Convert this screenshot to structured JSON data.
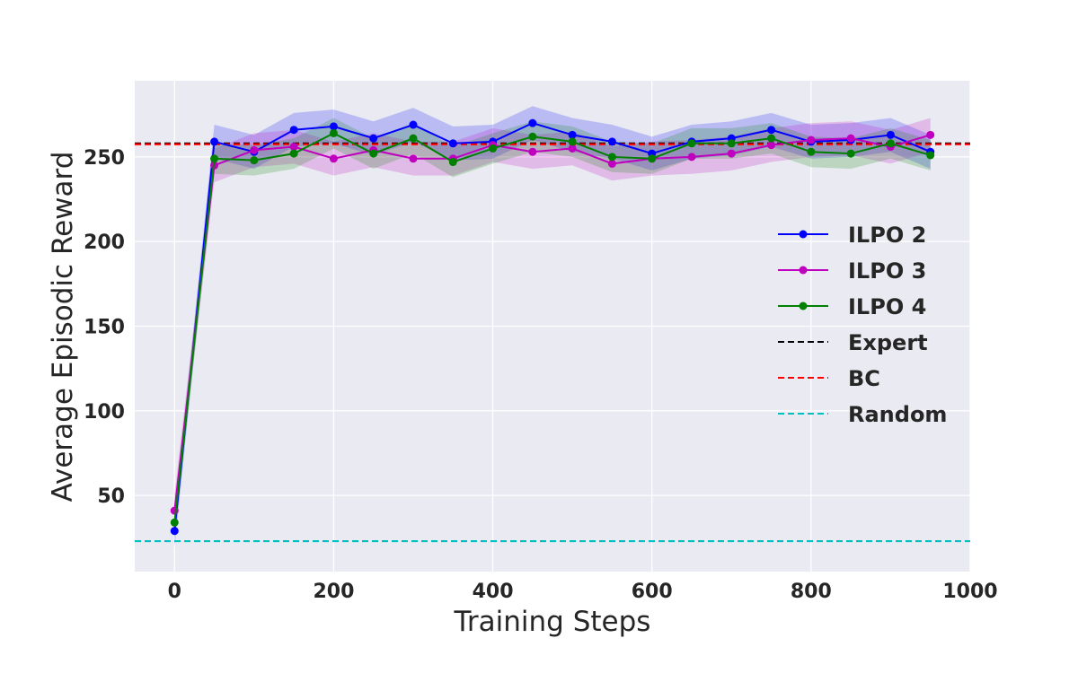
{
  "chart_data": {
    "type": "line",
    "title": "",
    "xlabel": "Training Steps",
    "ylabel": "Average Episodic Reward",
    "xlim": [
      -50,
      1000
    ],
    "ylim": [
      5,
      295
    ],
    "xticks": [
      0,
      200,
      400,
      600,
      800,
      1000
    ],
    "yticks": [
      50,
      100,
      150,
      200,
      250
    ],
    "grid": true,
    "legend_position": "center-right",
    "x": [
      0,
      50,
      100,
      150,
      200,
      250,
      300,
      350,
      400,
      450,
      500,
      550,
      600,
      650,
      700,
      750,
      800,
      850,
      900,
      950
    ],
    "series": [
      {
        "name": "ILPO 2",
        "color": "#0000ff",
        "values": [
          29,
          259,
          253,
          266,
          268,
          261,
          269,
          258,
          259,
          270,
          263,
          259,
          252,
          259,
          261,
          266,
          259,
          260,
          263,
          253
        ],
        "band": 10
      },
      {
        "name": "ILPO 3",
        "color": "#bf00bf",
        "values": [
          41,
          245,
          254,
          256,
          249,
          254,
          249,
          249,
          257,
          253,
          255,
          246,
          249,
          250,
          252,
          257,
          260,
          261,
          256,
          263
        ],
        "band": 10
      },
      {
        "name": "ILPO 4",
        "color": "#008000",
        "values": [
          34,
          249,
          248,
          252,
          264,
          252,
          261,
          247,
          255,
          262,
          259,
          250,
          249,
          258,
          258,
          261,
          253,
          252,
          258,
          251
        ],
        "band": 9
      }
    ],
    "reference_lines": [
      {
        "name": "Expert",
        "color": "#000000",
        "value": 258
      },
      {
        "name": "BC",
        "color": "#ff0000",
        "value": 257.5
      },
      {
        "name": "Random",
        "color": "#00bfbf",
        "value": 23
      }
    ]
  }
}
